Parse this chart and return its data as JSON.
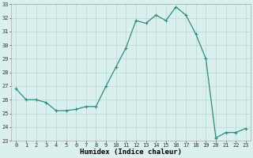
{
  "x": [
    0,
    1,
    2,
    3,
    4,
    5,
    6,
    7,
    8,
    9,
    10,
    11,
    12,
    13,
    14,
    15,
    16,
    17,
    18,
    19,
    20,
    21,
    22,
    23
  ],
  "y": [
    26.8,
    26.0,
    26.0,
    25.8,
    25.2,
    25.2,
    25.3,
    25.5,
    25.5,
    27.0,
    28.4,
    29.8,
    31.8,
    31.6,
    32.2,
    31.8,
    32.8,
    32.2,
    30.8,
    29.0,
    23.2,
    23.6,
    23.6,
    23.9
  ],
  "line_color": "#2e8b7a",
  "marker": "+",
  "marker_size": 3,
  "marker_lw": 0.8,
  "line_width": 0.9,
  "bg_color": "#d9f0ee",
  "grid_color": "#b8d8d4",
  "xlabel": "Humidex (Indice chaleur)",
  "ylim": [
    23,
    33
  ],
  "xlim_min": -0.5,
  "xlim_max": 23.5,
  "yticks": [
    23,
    24,
    25,
    26,
    27,
    28,
    29,
    30,
    31,
    32,
    33
  ],
  "xticks": [
    0,
    1,
    2,
    3,
    4,
    5,
    6,
    7,
    8,
    9,
    10,
    11,
    12,
    13,
    14,
    15,
    16,
    17,
    18,
    19,
    20,
    21,
    22,
    23
  ],
  "tick_fontsize": 5.0,
  "xlabel_fontsize": 6.5,
  "xlabel_fontweight": "bold"
}
